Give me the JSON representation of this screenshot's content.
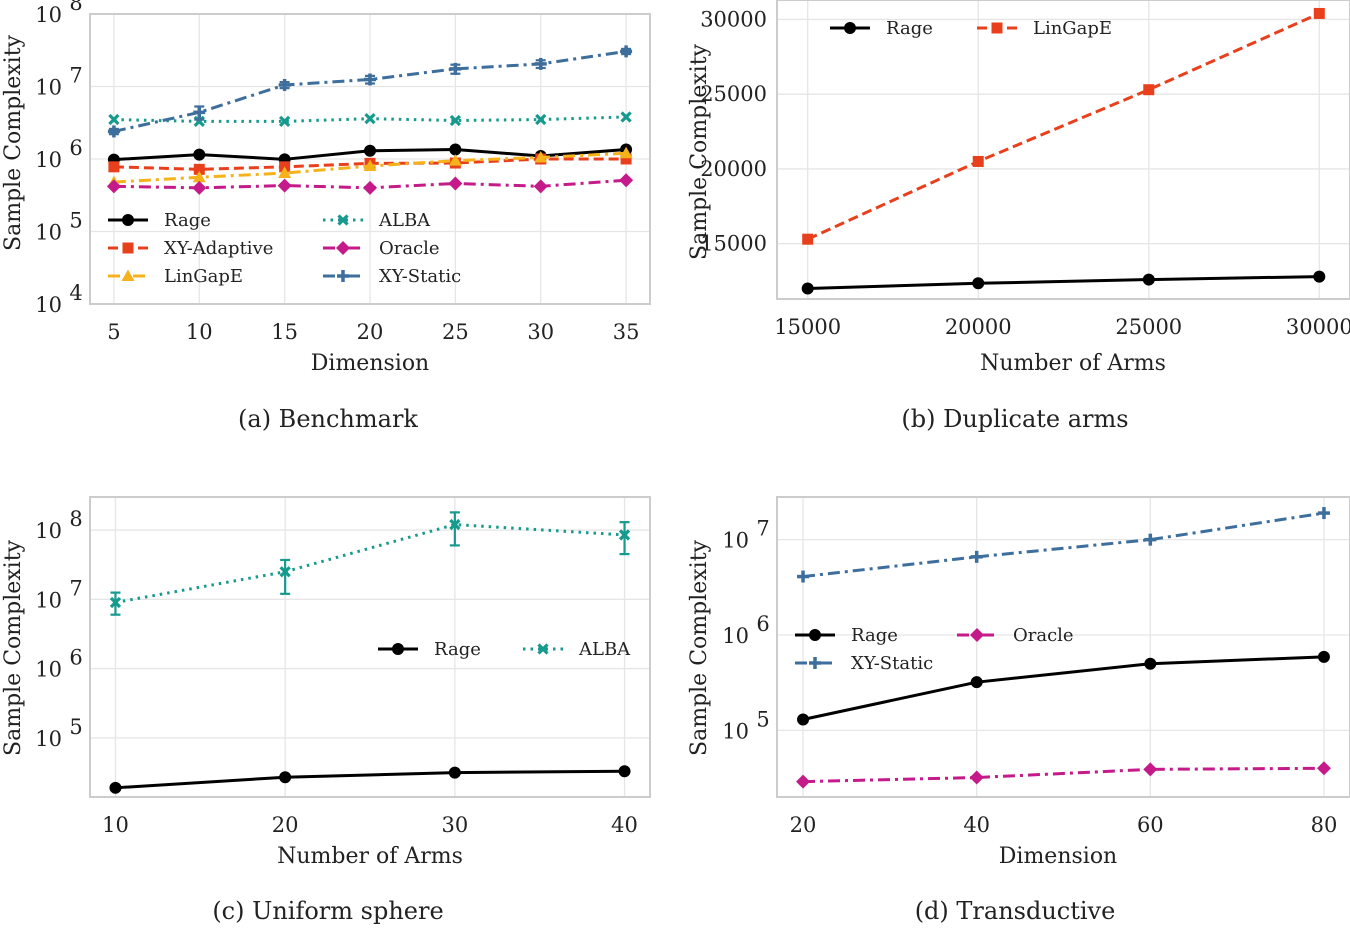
{
  "colors": {
    "Rage": "#000000",
    "XY-Adaptive": "#e8401c",
    "LinGapE_a": "#f5b21a",
    "LinGapE_b": "#e8401c",
    "ALBA": "#169a8e",
    "Oracle": "#c51a8a",
    "XY-Static": "#3d6e9c",
    "grid": "#e6e6e6",
    "frame": "#cccccc"
  },
  "chart_data": [
    {
      "type": "line",
      "caption": "(a) Benchmark",
      "xlabel": "Dimension",
      "ylabel": "Sample Complexity",
      "yscale": "log",
      "xlim": [
        3.6,
        36.4
      ],
      "ylim": [
        10000,
        100000000
      ],
      "xticks": [
        5,
        10,
        15,
        20,
        25,
        30,
        35
      ],
      "xtick_labels": [
        "5",
        "10",
        "15",
        "20",
        "25",
        "30",
        "35"
      ],
      "yticks": [
        10000,
        100000,
        1000000,
        10000000,
        100000000
      ],
      "ytick_labels": [
        {
          "b": "10",
          "e": "4"
        },
        {
          "b": "10",
          "e": "5"
        },
        {
          "b": "10",
          "e": "6"
        },
        {
          "b": "10",
          "e": "7"
        },
        {
          "b": "10",
          "e": "8"
        }
      ],
      "legend_position": "lower-left",
      "legend_columns": 2,
      "x": [
        5,
        10,
        15,
        20,
        25,
        30,
        35
      ],
      "series": [
        {
          "name": "Rage",
          "style": "solid",
          "marker": "circle",
          "colorKey": "Rage",
          "values": [
            980000,
            1150000,
            990000,
            1300000,
            1350000,
            1100000,
            1350000
          ]
        },
        {
          "name": "XY-Adaptive",
          "style": "dashed",
          "marker": "square",
          "colorKey": "XY-Adaptive",
          "values": [
            780000,
            720000,
            780000,
            870000,
            880000,
            1000000,
            1000000
          ]
        },
        {
          "name": "LinGapE",
          "style": "dashdot",
          "marker": "triangle",
          "colorKey": "LinGapE_a",
          "values": [
            480000,
            560000,
            640000,
            800000,
            950000,
            1050000,
            1200000
          ]
        },
        {
          "name": "ALBA",
          "style": "dotted",
          "marker": "x",
          "colorKey": "ALBA",
          "values": [
            3500000,
            3300000,
            3300000,
            3600000,
            3400000,
            3500000,
            3800000
          ]
        },
        {
          "name": "Oracle",
          "style": "dashdot",
          "marker": "diamond",
          "colorKey": "Oracle",
          "values": [
            420000,
            400000,
            430000,
            400000,
            460000,
            420000,
            510000
          ]
        },
        {
          "name": "XY-Static",
          "style": "dashdot",
          "marker": "plus",
          "colorKey": "XY-Static",
          "values": [
            2400000,
            4400000,
            10500000,
            12500000,
            17500000,
            20500000,
            30500000
          ],
          "err": [
            200000,
            900000,
            1000000,
            1500000,
            2500000,
            2500000,
            2500000
          ]
        }
      ]
    },
    {
      "type": "line",
      "caption": "(b) Duplicate arms",
      "xlabel": "Number of Arms",
      "ylabel": "Sample Complexity",
      "yscale": "linear",
      "xlim": [
        14100,
        30900
      ],
      "ylim": [
        11300,
        31300
      ],
      "xticks": [
        15000,
        20000,
        25000,
        30000
      ],
      "xtick_labels": [
        "15000",
        "20000",
        "25000",
        "30000"
      ],
      "yticks": [
        15000,
        20000,
        25000,
        30000
      ],
      "ytick_labels": [
        "15000",
        "20000",
        "25000",
        "30000"
      ],
      "legend_position": "top-left",
      "legend_columns": 2,
      "x": [
        15000,
        20000,
        25000,
        30000
      ],
      "series": [
        {
          "name": "Rage",
          "style": "solid",
          "marker": "circle",
          "colorKey": "Rage",
          "values": [
            12000,
            12350,
            12600,
            12800
          ]
        },
        {
          "name": "LinGapE",
          "style": "dashed",
          "marker": "square",
          "colorKey": "LinGapE_b",
          "values": [
            15300,
            20500,
            25300,
            30400
          ]
        }
      ]
    },
    {
      "type": "line",
      "caption": "(c) Uniform sphere",
      "xlabel": "Number of Arms",
      "ylabel": "Sample Complexity",
      "yscale": "log",
      "xlim": [
        8.5,
        41.5
      ],
      "ylim": [
        14000,
        300000000
      ],
      "xticks": [
        10,
        20,
        30,
        40
      ],
      "xtick_labels": [
        "10",
        "20",
        "30",
        "40"
      ],
      "yticks": [
        100000,
        1000000,
        10000000,
        100000000
      ],
      "ytick_labels": [
        {
          "b": "10",
          "e": "5"
        },
        {
          "b": "10",
          "e": "6"
        },
        {
          "b": "10",
          "e": "7"
        },
        {
          "b": "10",
          "e": "8"
        }
      ],
      "legend_position": "center-right",
      "legend_columns": 2,
      "x": [
        10,
        20,
        30,
        40
      ],
      "series": [
        {
          "name": "Rage",
          "style": "solid",
          "marker": "circle",
          "colorKey": "Rage",
          "values": [
            19000,
            27000,
            31500,
            33000
          ]
        },
        {
          "name": "ALBA",
          "style": "dotted",
          "marker": "x",
          "colorKey": "ALBA",
          "values": [
            9000000,
            25000000,
            120000000,
            85000000
          ],
          "err_low": [
            6000000,
            12000000,
            60000000,
            45000000
          ],
          "err_high": [
            12500000,
            37000000,
            180000000,
            130000000
          ]
        }
      ]
    },
    {
      "type": "line",
      "caption": "(d) Transductive",
      "xlabel": "Dimension",
      "ylabel": "Sample Complexity",
      "yscale": "log",
      "xlim": [
        17,
        83
      ],
      "ylim": [
        20000,
        28000000
      ],
      "xticks": [
        20,
        40,
        60,
        80
      ],
      "xtick_labels": [
        "20",
        "40",
        "60",
        "80"
      ],
      "yticks": [
        100000,
        1000000,
        10000000
      ],
      "ytick_labels": [
        {
          "b": "10",
          "e": "5"
        },
        {
          "b": "10",
          "e": "6"
        },
        {
          "b": "10",
          "e": "7"
        }
      ],
      "legend_position": "center-left",
      "legend_columns": 2,
      "x": [
        20,
        40,
        60,
        80
      ],
      "series": [
        {
          "name": "Rage",
          "style": "solid",
          "marker": "circle",
          "colorKey": "Rage",
          "values": [
            130000,
            320000,
            500000,
            590000
          ]
        },
        {
          "name": "Oracle",
          "style": "dashdot",
          "marker": "diamond",
          "colorKey": "Oracle",
          "values": [
            29000,
            32000,
            39000,
            40000
          ]
        },
        {
          "name": "XY-Static",
          "style": "dashdot",
          "marker": "plus",
          "colorKey": "XY-Static",
          "values": [
            4100000,
            6600000,
            10000000,
            19000000
          ]
        }
      ]
    }
  ]
}
